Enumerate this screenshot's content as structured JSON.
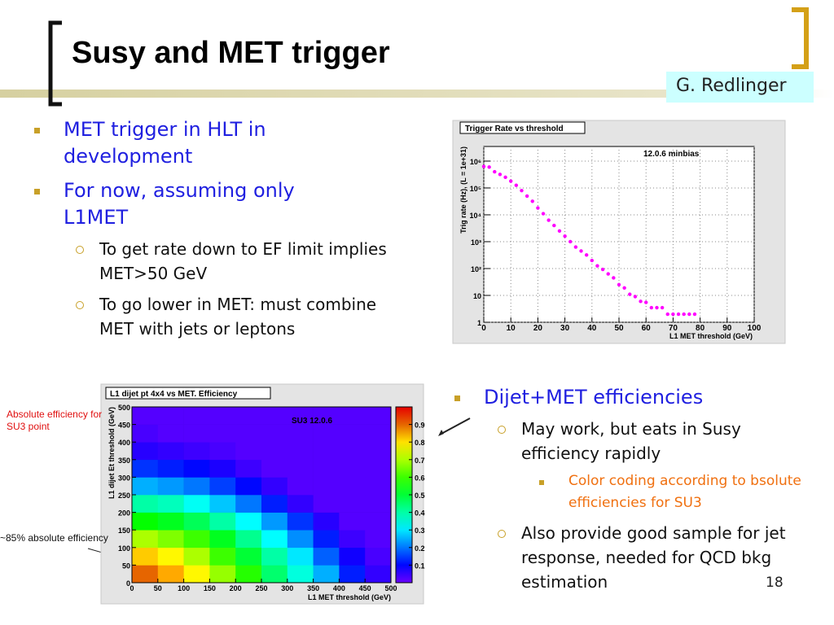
{
  "slide": {
    "title": "Susy and MET trigger",
    "author": "G. Redlinger",
    "page": 18,
    "left_list": [
      {
        "text": "MET trigger in HLT in development"
      },
      {
        "text": "For now, assuming only L1MET",
        "items": [
          "To get rate down to EF limit implies MET>50 GeV",
          "To go lower in MET: must combine MET with jets or leptons"
        ]
      }
    ],
    "right_list": [
      {
        "text": "Dijet+MET efficiencies",
        "items": [
          {
            "text": "May work, but eats in Susy efficiency rapidly",
            "items": [
              "Color coding according to bsolute efficiencies for SU3"
            ]
          },
          {
            "text": "Also provide good sample for jet response, needed for QCD bkg estimation"
          }
        ]
      }
    ],
    "notes": [
      "Absolute efficiency for SU3 point",
      "~85% absolute efficiency"
    ]
  },
  "chart_data": [
    {
      "type": "scatter",
      "title": "Trigger Rate vs threshold",
      "annotation": "12.0.6 minbias",
      "x_label": "L1 MET threshold (GeV)",
      "y_label": "Trig rate (Hz), (L = 1e+31)",
      "x": [
        0,
        2,
        4,
        6,
        8,
        10,
        12,
        14,
        16,
        18,
        20,
        22,
        24,
        26,
        28,
        30,
        32,
        34,
        36,
        38,
        40,
        42,
        44,
        46,
        48,
        50,
        52,
        54,
        56,
        58,
        60,
        62,
        64,
        66,
        68,
        70,
        72,
        74,
        76,
        78
      ],
      "series": [
        {
          "color": "#ff00ff",
          "values": [
            630000,
            600000,
            400000,
            320000,
            250000,
            180000,
            126000,
            80000,
            50000,
            32000,
            18000,
            11000,
            6300,
            4000,
            2500,
            1600,
            1000,
            630.0,
            450,
            320,
            200,
            126,
            93,
            63,
            45,
            25,
            19,
            11,
            9,
            6,
            5.5,
            3.5,
            3.5,
            3.5,
            2,
            2,
            2,
            2,
            2,
            2
          ]
        }
      ],
      "xlim": [
        0,
        100
      ],
      "xticks": [
        0,
        10,
        20,
        30,
        40,
        50,
        60,
        70,
        80,
        90,
        100
      ],
      "ylim": [
        1,
        3500000
      ],
      "log_y": true,
      "yticks": [
        1,
        10,
        {
          "value": 100,
          "label": "10²"
        },
        {
          "value": 1000,
          "label": "10³"
        },
        {
          "value": 10000,
          "label": "10⁴"
        },
        {
          "value": 100000,
          "label": "10⁵"
        },
        {
          "value": 1000000,
          "label": "10⁶"
        }
      ],
      "grid": true
    },
    {
      "type": "heatmap",
      "title": "L1 dijet pt 4x4 vs MET. Efficiency",
      "annotation": "SU3 12.0.6",
      "x_label": "L1 MET threshold (GeV)",
      "y_label": "L1 dijet Et threshold (GeV)",
      "xbins": [
        0,
        50,
        100,
        150,
        200,
        250,
        300,
        350,
        400,
        450,
        500
      ],
      "ybins": [
        0,
        50,
        100,
        150,
        200,
        250,
        300,
        350,
        400,
        450,
        500
      ],
      "values": [
        [
          0.9,
          0.85,
          0.78,
          0.68,
          0.58,
          0.45,
          0.35,
          0.25,
          0.12,
          0.05
        ],
        [
          0.82,
          0.78,
          0.7,
          0.6,
          0.5,
          0.4,
          0.3,
          0.18,
          0.08,
          0.03
        ],
        [
          0.7,
          0.66,
          0.6,
          0.52,
          0.42,
          0.32,
          0.22,
          0.12,
          0.04,
          0.02
        ],
        [
          0.55,
          0.52,
          0.47,
          0.4,
          0.32,
          0.23,
          0.14,
          0.06,
          0.02,
          0.02
        ],
        [
          0.4,
          0.38,
          0.33,
          0.27,
          0.2,
          0.12,
          0.05,
          0.02,
          0.02,
          0.02
        ],
        [
          0.25,
          0.23,
          0.2,
          0.15,
          0.1,
          0.05,
          0.02,
          0.02,
          0.02,
          0.02
        ],
        [
          0.14,
          0.12,
          0.1,
          0.07,
          0.04,
          0.02,
          0.02,
          0.02,
          0.02,
          0.02
        ],
        [
          0.06,
          0.05,
          0.04,
          0.03,
          0.02,
          0.02,
          0.02,
          0.02,
          0.02,
          0.02
        ],
        [
          0.03,
          0.02,
          0.02,
          0.02,
          0.02,
          0.02,
          0.02,
          0.02,
          0.02,
          0.02
        ],
        [
          0.02,
          0.02,
          0.02,
          0.02,
          0.02,
          0.02,
          0.02,
          0.02,
          0.02,
          0.02
        ]
      ],
      "xlim": [
        0,
        500
      ],
      "xticks": [
        0,
        50,
        100,
        150,
        200,
        250,
        300,
        350,
        400,
        450,
        500
      ],
      "ylim": [
        0,
        500
      ],
      "yticks": [
        0,
        50,
        100,
        150,
        200,
        250,
        300,
        350,
        400,
        450,
        500
      ],
      "zlim": [
        0,
        1
      ],
      "zticks": [
        0.1,
        0.2,
        0.3,
        0.4,
        0.5,
        0.6,
        0.7,
        0.8,
        0.9
      ]
    }
  ]
}
